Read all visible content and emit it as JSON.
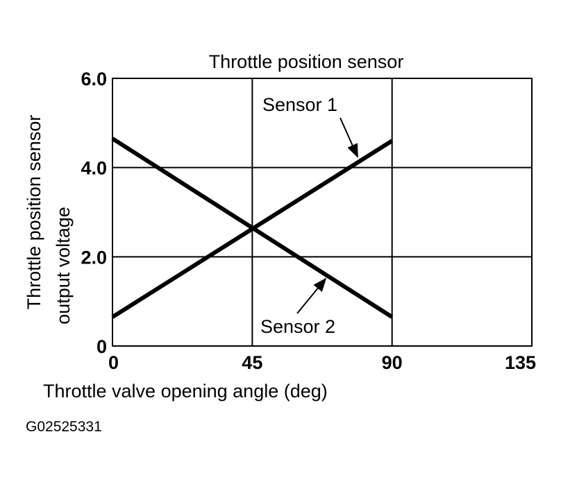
{
  "chart_data": {
    "type": "line",
    "title": "Throttle position sensor",
    "xlabel": "Throttle valve opening angle (deg)",
    "ylabel_lines": [
      "Throttle position sensor",
      "output voltage"
    ],
    "xlim": [
      0,
      135
    ],
    "ylim": [
      0,
      6.0
    ],
    "x_ticks": [
      0,
      45,
      90,
      135
    ],
    "x_tick_labels": [
      "0",
      "45",
      "90",
      "135"
    ],
    "y_ticks": [
      0,
      2.0,
      4.0,
      6.0
    ],
    "y_tick_labels": [
      "0",
      "2.0",
      "4.0",
      "6.0"
    ],
    "grid": true,
    "series": [
      {
        "name": "Sensor 1",
        "x": [
          0,
          90
        ],
        "y": [
          0.65,
          4.6
        ]
      },
      {
        "name": "Sensor 2",
        "x": [
          0,
          90
        ],
        "y": [
          4.65,
          0.65
        ]
      }
    ],
    "annotations": [
      "Sensor 1",
      "Sensor 2"
    ],
    "line_color": "#000000"
  },
  "figure_id": "G02525331"
}
